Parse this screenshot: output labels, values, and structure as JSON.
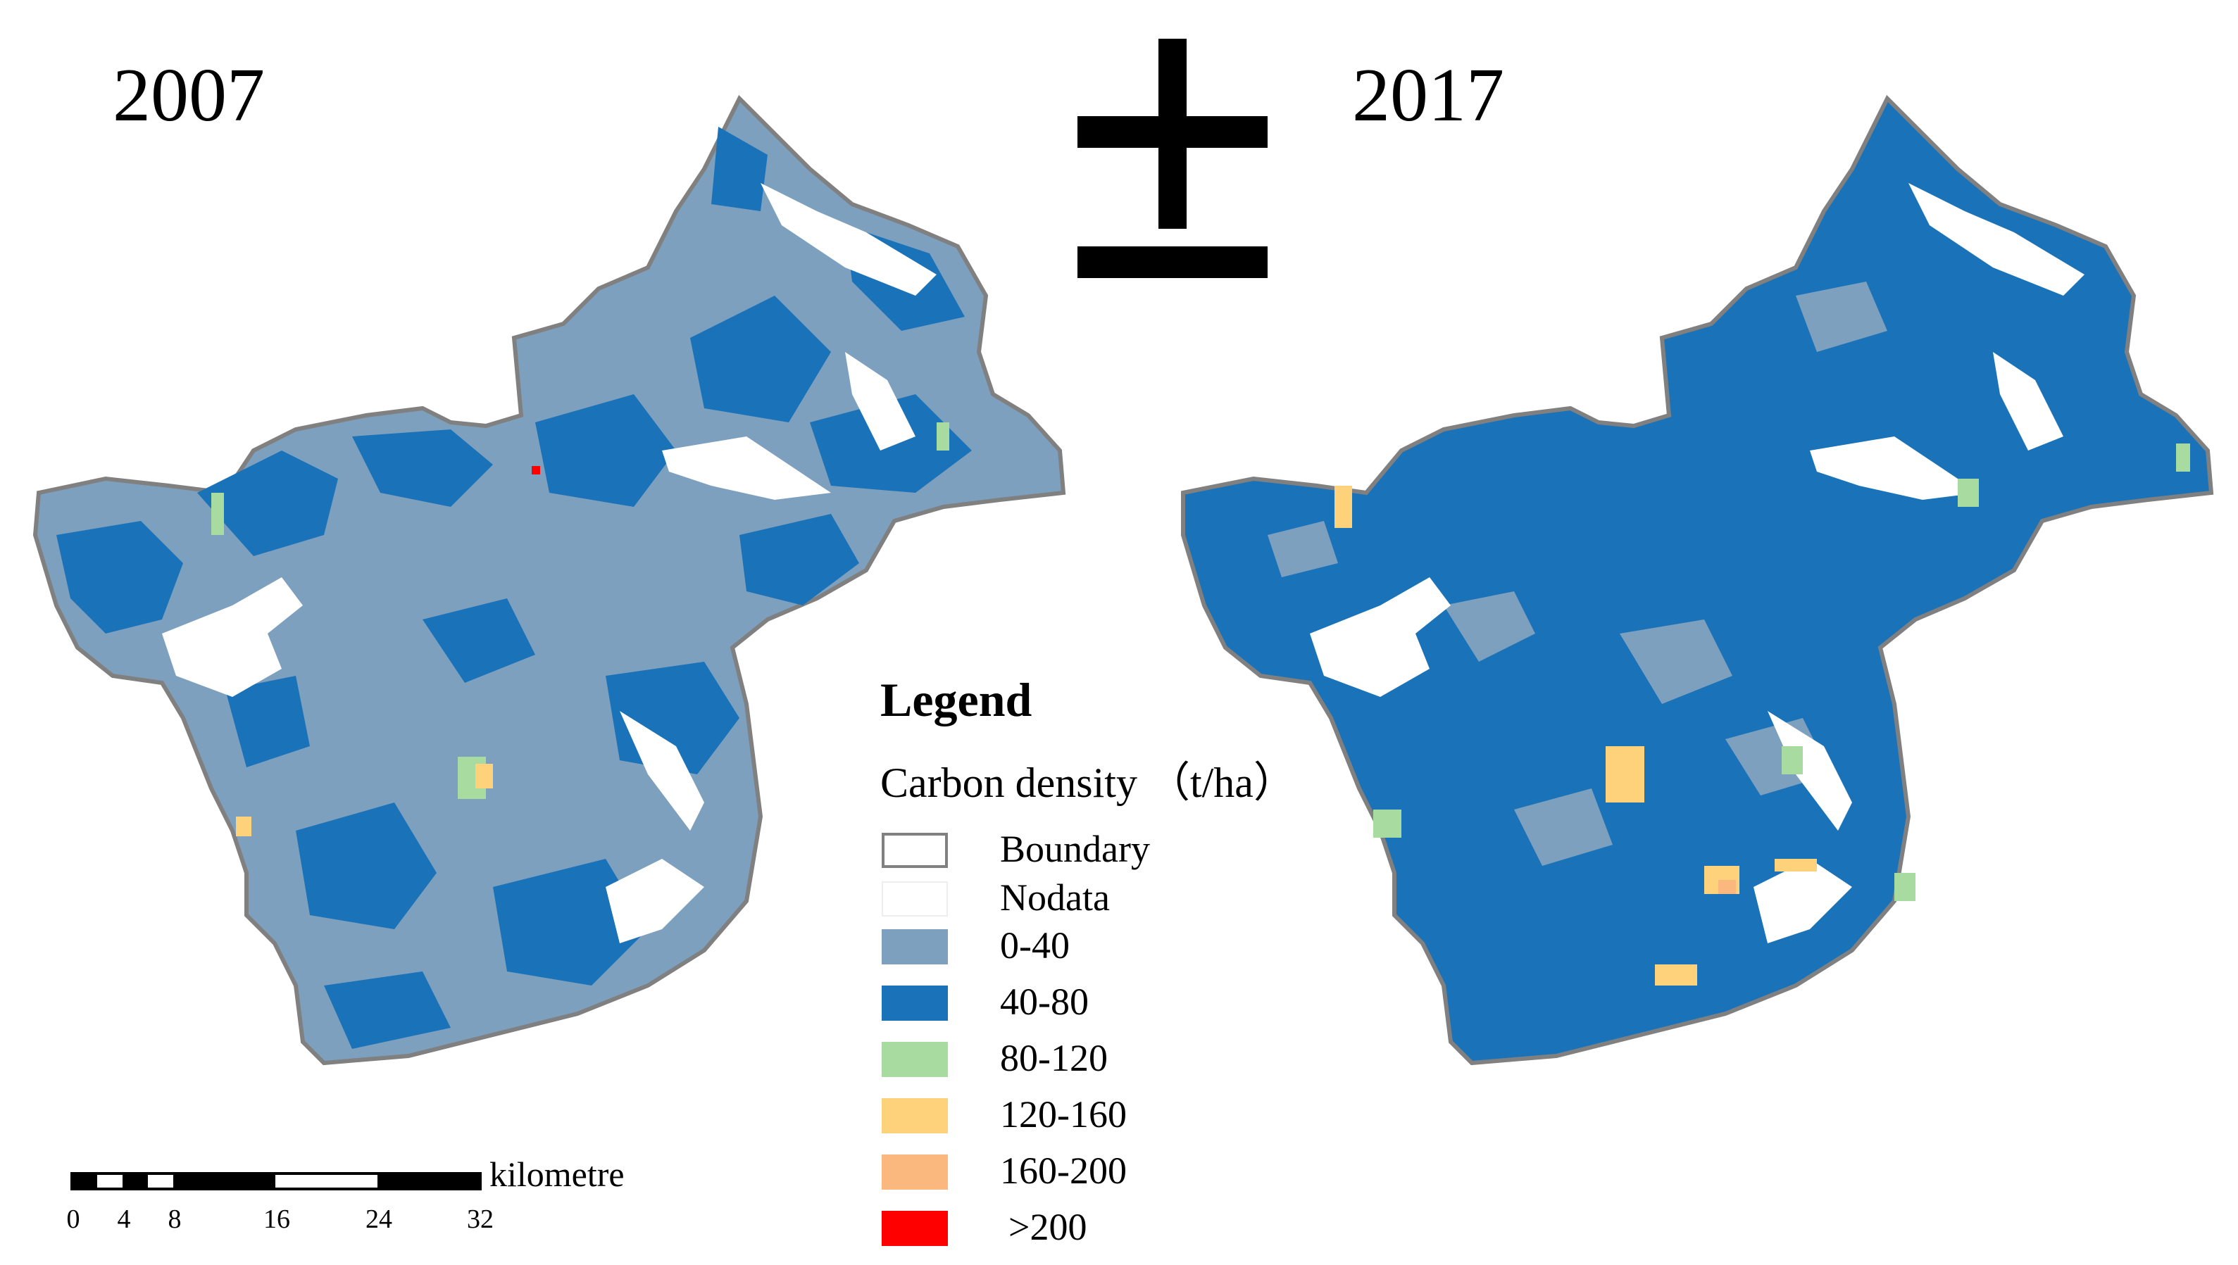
{
  "maps": {
    "left": {
      "year": "2007"
    },
    "right": {
      "year": "2017"
    }
  },
  "legend": {
    "title": "Legend",
    "subtitle": "Carbon density （t/ha）",
    "items": [
      {
        "label": "Boundary",
        "color": "#ffffff",
        "border": "#808080"
      },
      {
        "label": "Nodata",
        "color": "#ffffff",
        "border": "#eeeeee"
      },
      {
        "label": "0-40",
        "color": "#7da0be"
      },
      {
        "label": "40-80",
        "color": "#1a73b8"
      },
      {
        "label": "80-120",
        "color": "#a8dba0"
      },
      {
        "label": "120-160",
        "color": "#fed27a"
      },
      {
        "label": "160-200",
        "color": "#fbb87e"
      },
      {
        "label": ">200",
        "color": "#ff0000"
      }
    ]
  },
  "scale_bar": {
    "unit": "kilometre",
    "ticks": [
      "0",
      "4",
      "8",
      "16",
      "24",
      "32"
    ]
  },
  "north_arrow": {
    "icon": "north-arrow-icon"
  }
}
